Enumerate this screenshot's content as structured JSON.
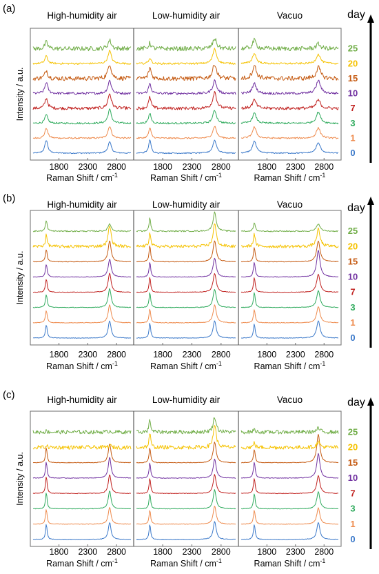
{
  "chart_data": [
    {
      "type": "line",
      "panel_label": "(a)",
      "ylabel": "Intensity / a.u.",
      "day_axis_title": "day",
      "series": [
        {
          "name": "0",
          "color": "#3a78c9",
          "noise": 0.008
        },
        {
          "name": "1",
          "color": "#ee8a4c",
          "noise": 0.01
        },
        {
          "name": "3",
          "color": "#2eaa5c",
          "noise": 0.012
        },
        {
          "name": "7",
          "color": "#c0201e",
          "noise": 0.02
        },
        {
          "name": "10",
          "color": "#7030a0",
          "noise": 0.016
        },
        {
          "name": "15",
          "color": "#c55a11",
          "noise": 0.03
        },
        {
          "name": "20",
          "color": "#f5c200",
          "noise": 0.012
        },
        {
          "name": "25",
          "color": "#70ad47",
          "noise": 0.03
        }
      ],
      "subplots": [
        {
          "title": "High-humidity air",
          "xlabel": "Raman Shift / cm-1",
          "xlim": [
            1350,
            3050
          ],
          "xticks": [
            1800,
            2300,
            2800
          ],
          "peaks": [
            {
              "x": 1580,
              "w": 30,
              "h": [
                0.7,
                0.55,
                0.45,
                0.55,
                0.6,
                0.45,
                0.4,
                0.35
              ]
            },
            {
              "x": 2680,
              "w": 35,
              "h": [
                0.6,
                0.65,
                0.75,
                0.8,
                0.7,
                0.8,
                0.7,
                0.45
              ]
            }
          ]
        },
        {
          "title": "Low-humidity air",
          "xlabel": "Raman Shift / cm-1",
          "xlim": [
            1350,
            3050
          ],
          "xticks": [
            1800,
            2300,
            2800
          ],
          "peaks": [
            {
              "x": 1580,
              "w": 25,
              "h": [
                0.7,
                0.55,
                0.55,
                0.6,
                0.55,
                0.6,
                0.3,
                0.3
              ]
            },
            {
              "x": 2690,
              "w": 38,
              "h": [
                0.7,
                0.65,
                0.7,
                0.9,
                0.7,
                0.8,
                0.8,
                0.55
              ]
            }
          ]
        },
        {
          "title": "Vacuo",
          "xlabel": "Raman Shift / cm-1",
          "xlim": [
            1350,
            3050
          ],
          "xticks": [
            1800,
            2300,
            2800
          ],
          "peaks": [
            {
              "x": 1580,
              "w": 40,
              "h": [
                0.65,
                0.6,
                0.55,
                0.45,
                0.55,
                0.7,
                0.55,
                0.45
              ]
            },
            {
              "x": 2700,
              "w": 45,
              "h": [
                0.55,
                0.55,
                0.6,
                0.45,
                0.7,
                0.6,
                0.5,
                0.25
              ]
            }
          ]
        }
      ]
    },
    {
      "type": "line",
      "panel_label": "(b)",
      "ylabel": "Intensity / a.u.",
      "day_axis_title": "day",
      "series": [
        {
          "name": "0",
          "color": "#3a78c9",
          "noise": 0.004
        },
        {
          "name": "1",
          "color": "#ee8a4c",
          "noise": 0.004
        },
        {
          "name": "3",
          "color": "#2eaa5c",
          "noise": 0.004
        },
        {
          "name": "7",
          "color": "#c0201e",
          "noise": 0.004
        },
        {
          "name": "10",
          "color": "#7030a0",
          "noise": 0.004
        },
        {
          "name": "15",
          "color": "#c55a11",
          "noise": 0.005
        },
        {
          "name": "20",
          "color": "#f5c200",
          "noise": 0.02
        },
        {
          "name": "25",
          "color": "#70ad47",
          "noise": 0.008
        }
      ],
      "subplots": [
        {
          "title": "High-humidity air",
          "xlabel": "Raman Shift / cm-1",
          "xlim": [
            1350,
            3050
          ],
          "xticks": [
            1800,
            2300,
            2800
          ],
          "peaks": [
            {
              "x": 1580,
              "w": 18,
              "h": [
                0.7,
                0.65,
                0.7,
                0.7,
                0.65,
                0.65,
                0.6,
                0.55
              ]
            },
            {
              "x": 2680,
              "w": 30,
              "h": [
                0.9,
                0.95,
                1.0,
                1.0,
                0.95,
                1.1,
                1.1,
                0.4
              ]
            }
          ]
        },
        {
          "title": "Low-humidity air",
          "xlabel": "Raman Shift / cm-1",
          "xlim": [
            1350,
            3050
          ],
          "xticks": [
            1800,
            2300,
            2800
          ],
          "peaks": [
            {
              "x": 1580,
              "w": 16,
              "h": [
                0.8,
                0.75,
                0.8,
                0.8,
                0.8,
                0.85,
                0.8,
                0.7
              ]
            },
            {
              "x": 2690,
              "w": 32,
              "h": [
                0.9,
                0.95,
                0.95,
                1.0,
                1.0,
                1.1,
                1.2,
                1.0
              ]
            }
          ]
        },
        {
          "title": "Vacuo",
          "xlabel": "Raman Shift / cm-1",
          "xlim": [
            1350,
            3050
          ],
          "xticks": [
            1800,
            2300,
            2800
          ],
          "peaks": [
            {
              "x": 1580,
              "w": 18,
              "h": [
                0.75,
                0.7,
                0.8,
                0.8,
                0.8,
                0.75,
                0.7,
                0.45
              ]
            },
            {
              "x": 2700,
              "w": 35,
              "h": [
                0.9,
                0.85,
                0.9,
                0.95,
                1.4,
                1.1,
                0.9,
                0.4
              ]
            }
          ]
        }
      ]
    },
    {
      "type": "line",
      "panel_label": "(c)",
      "ylabel": "Intensity / a.u.",
      "day_axis_title": "day",
      "series": [
        {
          "name": "0",
          "color": "#3a78c9",
          "noise": 0.004
        },
        {
          "name": "1",
          "color": "#ee8a4c",
          "noise": 0.004
        },
        {
          "name": "3",
          "color": "#2eaa5c",
          "noise": 0.004
        },
        {
          "name": "7",
          "color": "#c0201e",
          "noise": 0.004
        },
        {
          "name": "10",
          "color": "#7030a0",
          "noise": 0.004
        },
        {
          "name": "15",
          "color": "#c55a11",
          "noise": 0.004
        },
        {
          "name": "20",
          "color": "#f5c200",
          "noise": 0.025
        },
        {
          "name": "25",
          "color": "#70ad47",
          "noise": 0.025
        }
      ],
      "subplots": [
        {
          "title": "High-humidity air",
          "xlabel": "Raman Shift / cm-1",
          "xlim": [
            1350,
            3050
          ],
          "xticks": [
            1800,
            2300,
            2800
          ],
          "peaks": [
            {
              "x": 1580,
              "w": 16,
              "h": [
                0.8,
                0.8,
                0.85,
                0.9,
                0.85,
                0.8,
                0.1,
                0.05
              ]
            },
            {
              "x": 2680,
              "w": 28,
              "h": [
                0.9,
                0.9,
                0.95,
                1.0,
                1.1,
                1.0,
                0.1,
                0.05
              ]
            }
          ]
        },
        {
          "title": "Low-humidity air",
          "xlabel": "Raman Shift / cm-1",
          "xlim": [
            1350,
            3050
          ],
          "xticks": [
            1800,
            2300,
            2800
          ],
          "peaks": [
            {
              "x": 1580,
              "w": 16,
              "h": [
                0.8,
                0.75,
                0.8,
                0.8,
                0.8,
                0.8,
                0.75,
                0.7
              ]
            },
            {
              "x": 2690,
              "w": 30,
              "h": [
                0.95,
                0.95,
                1.0,
                1.0,
                1.0,
                1.1,
                1.2,
                0.8
              ]
            }
          ]
        },
        {
          "title": "Vacuo",
          "xlabel": "Raman Shift / cm-1",
          "xlim": [
            1350,
            3050
          ],
          "xticks": [
            1800,
            2300,
            2800
          ],
          "peaks": [
            {
              "x": 1580,
              "w": 18,
              "h": [
                0.8,
                0.75,
                0.8,
                0.8,
                0.85,
                0.7,
                0.25,
                0.15
              ]
            },
            {
              "x": 2700,
              "w": 32,
              "h": [
                0.9,
                0.85,
                0.9,
                0.95,
                1.3,
                1.5,
                0.3,
                0.2
              ]
            }
          ]
        }
      ]
    }
  ]
}
